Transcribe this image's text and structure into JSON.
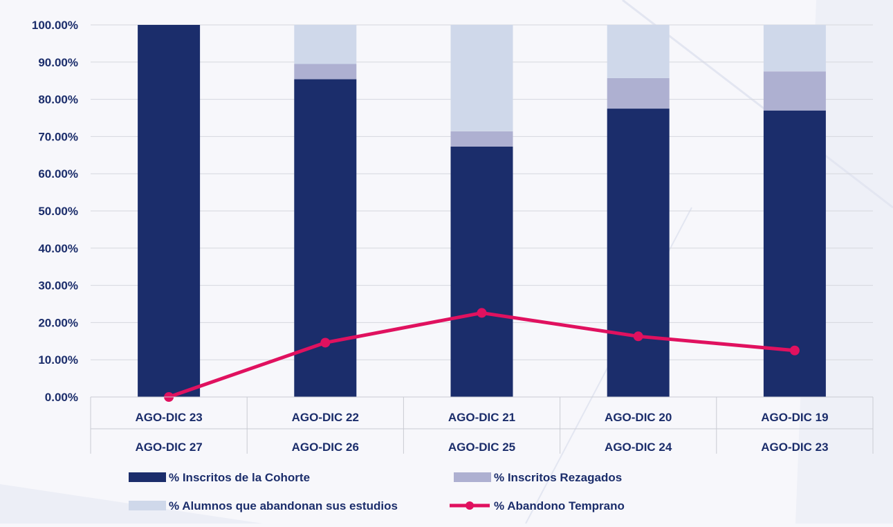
{
  "chart_data": {
    "type": "bar",
    "stacked": true,
    "categories": [
      [
        "AGO-DIC 23",
        "AGO-DIC 27"
      ],
      [
        "AGO-DIC 22",
        "AGO-DIC 26"
      ],
      [
        "AGO-DIC 21",
        "AGO-DIC 25"
      ],
      [
        "AGO-DIC 20",
        "AGO-DIC 24"
      ],
      [
        "AGO-DIC 19",
        "AGO-DIC 23"
      ]
    ],
    "ylim": [
      0,
      100
    ],
    "yticks": [
      "0.00%",
      "10.00%",
      "20.00%",
      "30.00%",
      "40.00%",
      "50.00%",
      "60.00%",
      "70.00%",
      "80.00%",
      "90.00%",
      "100.00%"
    ],
    "grid": true,
    "legend_position": "bottom",
    "series": [
      {
        "name": "% Inscritos de la Cohorte",
        "kind": "bar",
        "color": "#1b2d6b",
        "values": [
          100,
          85.4,
          67.3,
          77.5,
          77.0
        ]
      },
      {
        "name": "% Inscritos Rezagados",
        "kind": "bar",
        "color": "#aeb0d1",
        "values": [
          0,
          4.1,
          4.1,
          8.2,
          10.5
        ]
      },
      {
        "name": "% Alumnos que abandonan sus estudios",
        "kind": "bar",
        "color": "#cfd8ea",
        "values": [
          0,
          10.5,
          28.6,
          14.3,
          12.5
        ]
      },
      {
        "name": "% Abandono Temprano",
        "kind": "line",
        "color": "#e0115f",
        "values": [
          0,
          14.6,
          22.6,
          16.3,
          12.5
        ]
      }
    ]
  }
}
